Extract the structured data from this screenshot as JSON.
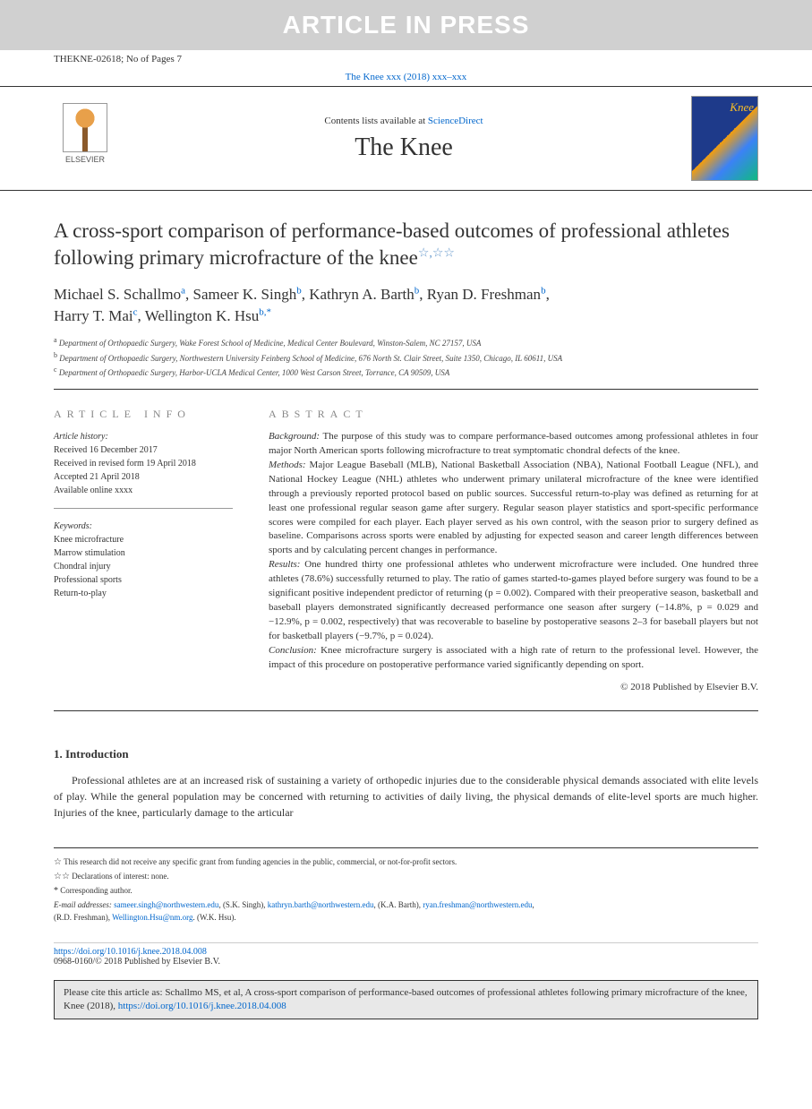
{
  "banner_text": "ARTICLE IN PRESS",
  "article_id": "THEKNE-02618; No of Pages 7",
  "journal_link_text": "The Knee xxx (2018) xxx–xxx",
  "masthead": {
    "contents_prefix": "Contents lists available at ",
    "contents_link": "ScienceDirect",
    "journal_name": "The Knee",
    "elsevier_label": "ELSEVIER",
    "cover_title": "Knee"
  },
  "title": "A cross-sport comparison of performance-based outcomes of professional athletes following primary microfracture of the knee",
  "title_stars": "☆,☆☆",
  "authors": [
    {
      "name": "Michael S. Schallmo",
      "aff": "a"
    },
    {
      "name": "Sameer K. Singh",
      "aff": "b"
    },
    {
      "name": "Kathryn A. Barth",
      "aff": "b"
    },
    {
      "name": "Ryan D. Freshman",
      "aff": "b"
    },
    {
      "name": "Harry T. Mai",
      "aff": "c"
    },
    {
      "name": "Wellington K. Hsu",
      "aff": "b,*"
    }
  ],
  "affiliations": [
    {
      "key": "a",
      "text": "Department of Orthopaedic Surgery, Wake Forest School of Medicine, Medical Center Boulevard, Winston-Salem, NC 27157, USA"
    },
    {
      "key": "b",
      "text": "Department of Orthopaedic Surgery, Northwestern University Feinberg School of Medicine, 676 North St. Clair Street, Suite 1350, Chicago, IL 60611, USA"
    },
    {
      "key": "c",
      "text": "Department of Orthopaedic Surgery, Harbor-UCLA Medical Center, 1000 West Carson Street, Torrance, CA 90509, USA"
    }
  ],
  "info": {
    "header": "ARTICLE INFO",
    "history_label": "Article history:",
    "history": [
      "Received 16 December 2017",
      "Received in revised form 19 April 2018",
      "Accepted 21 April 2018",
      "Available online xxxx"
    ],
    "keywords_label": "Keywords:",
    "keywords": [
      "Knee microfracture",
      "Marrow stimulation",
      "Chondral injury",
      "Professional sports",
      "Return-to-play"
    ]
  },
  "abstract": {
    "header": "ABSTRACT",
    "background_label": "Background:",
    "background": "The purpose of this study was to compare performance-based outcomes among professional athletes in four major North American sports following microfracture to treat symptomatic chondral defects of the knee.",
    "methods_label": "Methods:",
    "methods": "Major League Baseball (MLB), National Basketball Association (NBA), National Football League (NFL), and National Hockey League (NHL) athletes who underwent primary unilateral microfracture of the knee were identified through a previously reported protocol based on public sources. Successful return-to-play was defined as returning for at least one professional regular season game after surgery. Regular season player statistics and sport-specific performance scores were compiled for each player. Each player served as his own control, with the season prior to surgery defined as baseline. Comparisons across sports were enabled by adjusting for expected season and career length differences between sports and by calculating percent changes in performance.",
    "results_label": "Results:",
    "results": "One hundred thirty one professional athletes who underwent microfracture were included. One hundred three athletes (78.6%) successfully returned to play. The ratio of games started-to-games played before surgery was found to be a significant positive independent predictor of returning (p = 0.002). Compared with their preoperative season, basketball and baseball players demonstrated significantly decreased performance one season after surgery (−14.8%, p = 0.029 and −12.9%, p = 0.002, respectively) that was recoverable to baseline by postoperative seasons 2–3 for baseball players but not for basketball players (−9.7%, p = 0.024).",
    "conclusion_label": "Conclusion:",
    "conclusion": "Knee microfracture surgery is associated with a high rate of return to the professional level. However, the impact of this procedure on postoperative performance varied significantly depending on sport.",
    "copyright": "© 2018 Published by Elsevier B.V."
  },
  "intro": {
    "heading": "1. Introduction",
    "text": "Professional athletes are at an increased risk of sustaining a variety of orthopedic injuries due to the considerable physical demands associated with elite levels of play. While the general population may be concerned with returning to activities of daily living, the physical demands of elite-level sports are much higher. Injuries of the knee, particularly damage to the articular"
  },
  "footnotes": {
    "fn1_mark": "☆",
    "fn1": "This research did not receive any specific grant from funding agencies in the public, commercial, or not-for-profit sectors.",
    "fn2_mark": "☆☆",
    "fn2": "Declarations of interest: none.",
    "corr_mark": "*",
    "corr": "Corresponding author.",
    "email_label": "E-mail addresses:",
    "emails": [
      {
        "addr": "sameer.singh@northwestern.edu",
        "who": "(S.K. Singh)"
      },
      {
        "addr": "kathryn.barth@northwestern.edu",
        "who": "(K.A. Barth)"
      },
      {
        "addr": "ryan.freshman@northwestern.edu",
        "who": "(R.D. Freshman)"
      }
    ],
    "email_tail_who": "(R.D. Freshman),",
    "email_last": "Wellington.Hsu@nm.org",
    "email_last_who": ". (W.K. Hsu)."
  },
  "doi": {
    "url": "https://doi.org/10.1016/j.knee.2018.04.008",
    "issn_line": "0968-0160/© 2018 Published by Elsevier B.V."
  },
  "cite": {
    "prefix": "Please cite this article as: Schallmo MS, et al, A cross-sport comparison of performance-based outcomes of professional athletes following primary microfracture of the knee, Knee (2018), ",
    "url": "https://doi.org/10.1016/j.knee.2018.04.008"
  }
}
